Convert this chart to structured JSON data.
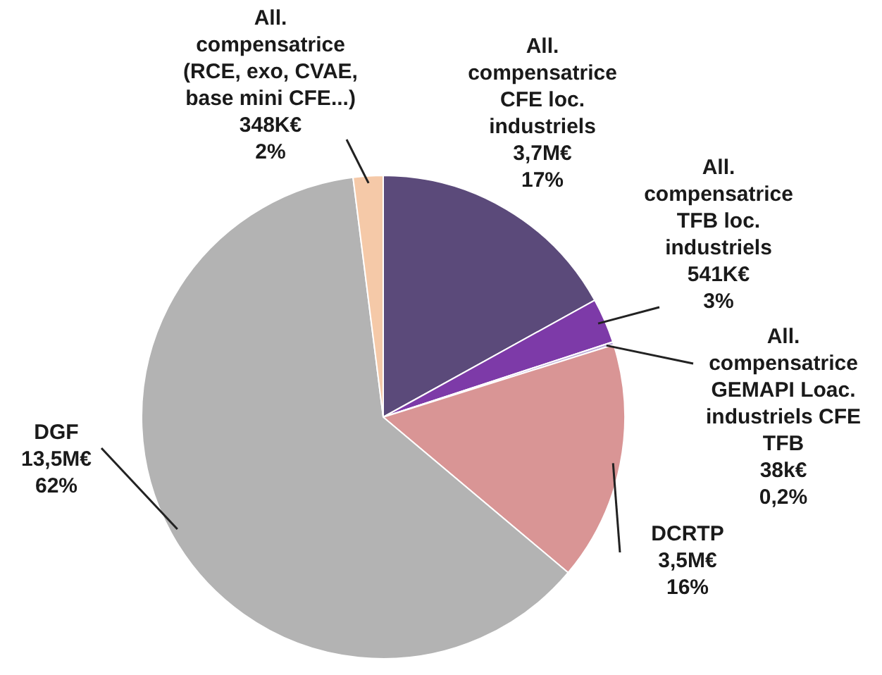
{
  "chart_data": {
    "type": "pie",
    "categories": [
      "All. compensatrice CFE loc. industriels",
      "All. compensatrice TFB loc. industriels",
      "All. compensatrice GEMAPI Loac. industriels CFE TFB",
      "DCRTP",
      "DGF",
      "All. compensatrice (RCE, exo, CVAE, base mini CFE...)"
    ],
    "values": [
      17,
      3,
      0.2,
      16,
      62,
      2
    ],
    "value_labels": [
      "3,7M€ 17%",
      "541K€ 3%",
      "38k€ 0,2%",
      "3,5M€ 16%",
      "13,5M€ 62%",
      "348K€ 2%"
    ],
    "colors": [
      "#5b4a7a",
      "#7d3aa8",
      "#b9a8d8",
      "#d99595",
      "#b3b3b3",
      "#f5c9a8"
    ],
    "legend": false
  }
}
